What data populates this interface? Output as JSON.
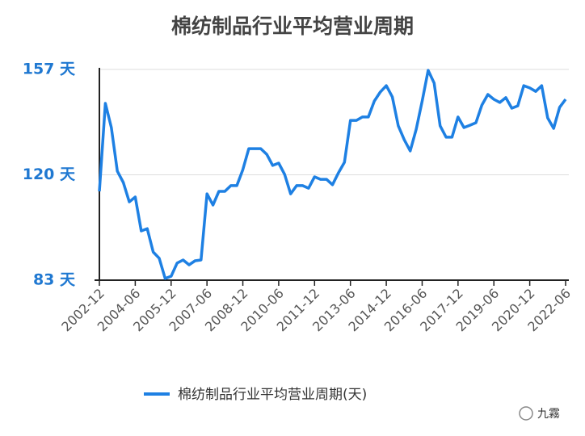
{
  "chart_data": {
    "type": "line",
    "title": "棉纺制品行业平均营业周期",
    "categories": [
      "2002-12",
      null,
      null,
      null,
      null,
      null,
      "2004-06",
      null,
      null,
      null,
      null,
      null,
      "2005-12",
      null,
      null,
      null,
      null,
      null,
      "2007-06",
      null,
      null,
      null,
      null,
      null,
      "2008-12",
      null,
      null,
      null,
      null,
      null,
      "2010-06",
      null,
      null,
      null,
      null,
      null,
      "2011-12",
      null,
      null,
      null,
      null,
      null,
      "2013-06",
      null,
      null,
      null,
      null,
      null,
      "2014-12",
      null,
      null,
      null,
      null,
      null,
      "2016-06",
      null,
      null,
      null,
      null,
      null,
      "2017-12",
      null,
      null,
      null,
      null,
      null,
      "2019-06",
      null,
      null,
      null,
      null,
      null,
      "2020-12",
      null,
      null,
      null,
      null,
      null,
      "2022-06"
    ],
    "series": [
      {
        "name": "棉纺制品行业平均营业周期(天)",
        "color": "#1e80e3",
        "values": [
          114.2,
          145.1,
          136.6,
          121.3,
          117.3,
          110.5,
          112.2,
          100.3,
          101.1,
          92.9,
          90.7,
          83.6,
          84.4,
          89.0,
          90.1,
          88.4,
          89.8,
          90.1,
          113.3,
          109.4,
          114.2,
          114.2,
          116.2,
          116.2,
          121.8,
          129.2,
          129.2,
          129.2,
          127.2,
          123.3,
          124.1,
          120.1,
          113.3,
          116.2,
          116.2,
          115.3,
          119.3,
          118.4,
          118.4,
          116.5,
          120.7,
          124.4,
          139.1,
          139.1,
          140.3,
          140.3,
          145.9,
          149.1,
          151.3,
          147.4,
          137.2,
          132.3,
          128.4,
          136.0,
          145.9,
          156.7,
          152.2,
          137.2,
          133.2,
          133.2,
          140.3,
          136.6,
          137.4,
          138.3,
          144.5,
          148.2,
          146.5,
          145.4,
          147.1,
          143.4,
          144.2,
          151.3,
          150.5,
          149.3,
          151.3,
          140.0,
          136.3,
          143.7,
          146.5
        ]
      }
    ],
    "ylim": [
      83,
      157
    ],
    "yticks": [
      {
        "value": 83,
        "label": "83 天"
      },
      {
        "value": 120,
        "label": "120 天"
      },
      {
        "value": 157,
        "label": "157 天"
      }
    ],
    "grid": true,
    "legend": "bottom",
    "watermark": "九霧"
  }
}
